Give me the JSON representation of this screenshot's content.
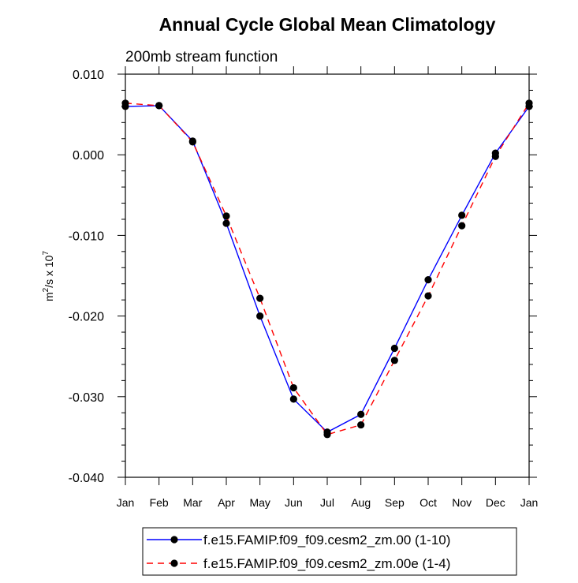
{
  "chart_data": {
    "type": "line",
    "title": "Annual Cycle Global Mean Climatology",
    "subtitle": "200mb stream function",
    "ylabel_base": "m",
    "ylabel_sup1": "2",
    "ylabel_mid": "/s x 10",
    "ylabel_sup2": "7",
    "xlabel": "",
    "ylim": [
      -0.04,
      0.01
    ],
    "yticks": [
      "0.010",
      "0.000",
      "-0.010",
      "-0.020",
      "-0.030",
      "-0.040"
    ],
    "ytick_values": [
      0.01,
      0.0,
      -0.01,
      -0.02,
      -0.03,
      -0.04
    ],
    "categories": [
      "Jan",
      "Feb",
      "Mar",
      "Apr",
      "May",
      "Jun",
      "Jul",
      "Aug",
      "Sep",
      "Oct",
      "Nov",
      "Dec",
      "Jan"
    ],
    "series": [
      {
        "name": "f.e15.FAMIP.f09_f09.cesm2_zm.00 (1-10)",
        "color": "#0000ff",
        "dash": "solid",
        "values": [
          0.006,
          0.0061,
          0.0017,
          -0.0085,
          -0.02,
          -0.0303,
          -0.0344,
          -0.0322,
          -0.024,
          -0.0155,
          -0.0075,
          0.0002,
          0.006
        ]
      },
      {
        "name": "f.e15.FAMIP.f09_f09.cesm2_zm.00e (1-4)",
        "color": "#ff0000",
        "dash": "dashed",
        "values": [
          0.0064,
          0.0061,
          0.0016,
          -0.0076,
          -0.0178,
          -0.0289,
          -0.0347,
          -0.0335,
          -0.0255,
          -0.0175,
          -0.0088,
          -0.0002,
          0.0064
        ]
      }
    ]
  }
}
